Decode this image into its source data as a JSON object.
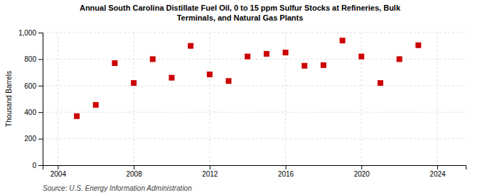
{
  "chart_data": {
    "type": "scatter",
    "title": "Annual South Carolina Distillate Fuel Oil, 0 to 15 ppm Sulfur Stocks at Refineries, Bulk\nTerminals, and Natural Gas Plants",
    "ylabel": "Thousand Barrels",
    "source": "Source: U.S. Energy Information Administration",
    "x": [
      2005,
      2006,
      2007,
      2008,
      2009,
      2010,
      2011,
      2012,
      2013,
      2014,
      2015,
      2016,
      2017,
      2018,
      2019,
      2020,
      2021,
      2022,
      2023
    ],
    "values": [
      370,
      455,
      770,
      620,
      800,
      660,
      900,
      685,
      635,
      820,
      840,
      850,
      750,
      755,
      940,
      820,
      620,
      800,
      905
    ],
    "color": "#cc0000",
    "marker": "square",
    "xlim": [
      2003.2,
      2025.5
    ],
    "xticks": [
      2004,
      2008,
      2012,
      2016,
      2020,
      2024
    ],
    "ylim": [
      0,
      1000
    ],
    "yticks": [
      0,
      200,
      400,
      600,
      800,
      {
        "value": 1000,
        "label": "1,000"
      }
    ],
    "grid": true
  }
}
